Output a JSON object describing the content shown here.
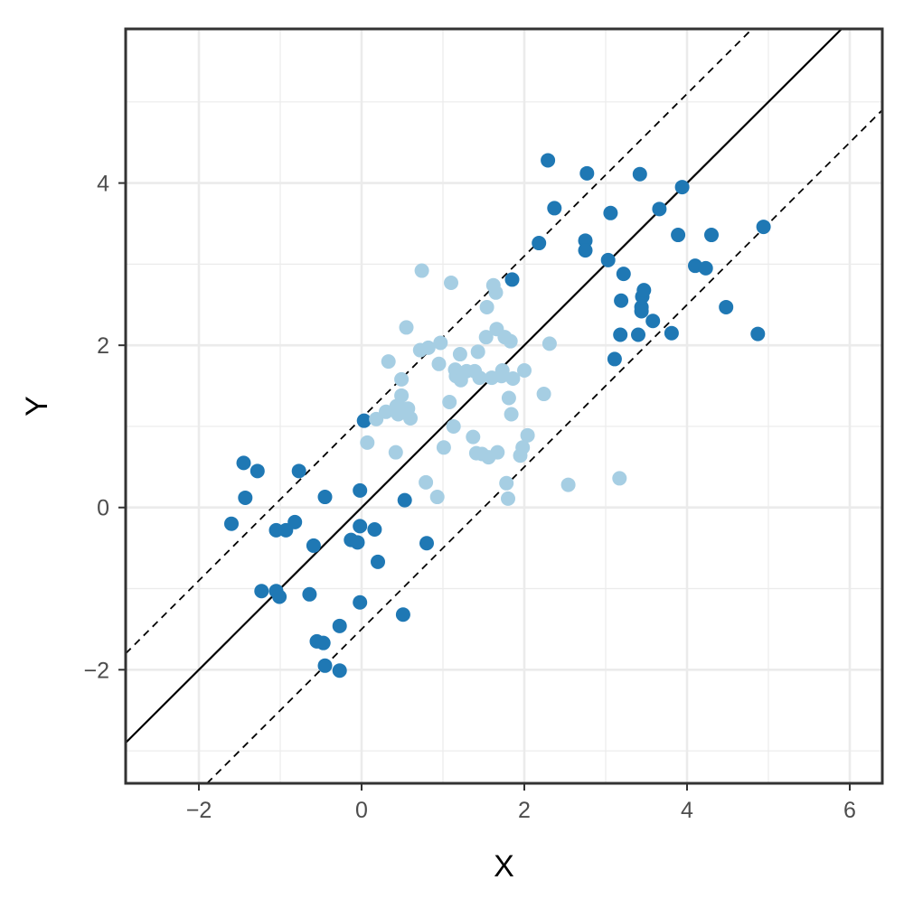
{
  "chart_data": {
    "type": "scatter",
    "title": "",
    "xlabel": "X",
    "ylabel": "Y",
    "xlim": [
      -2.9,
      6.4
    ],
    "ylim": [
      -3.4,
      5.9
    ],
    "grid": true,
    "legend": "none",
    "x_ticks": [
      -2,
      0,
      2,
      4,
      6
    ],
    "y_ticks": [
      -2,
      0,
      2,
      4
    ],
    "x_tick_labels": [
      "−2",
      "0",
      "2",
      "4",
      "6"
    ],
    "y_tick_labels": [
      "−2",
      "0",
      "2",
      "4"
    ],
    "colors": {
      "dark_points": "#1f78b4",
      "light_points": "#a6cee3",
      "line": "#000000",
      "grid": "#ebebeb",
      "panel_border": "#333333"
    },
    "lines": [
      {
        "style": "solid",
        "intercept": 0.0,
        "slope": 1.0
      },
      {
        "style": "dashed",
        "intercept": 1.1,
        "slope": 1.0
      },
      {
        "style": "dashed",
        "intercept": -1.5,
        "slope": 1.0
      }
    ],
    "series": [
      {
        "color_role": "dark",
        "points": [
          [
            -1.6,
            -0.2
          ],
          [
            -1.45,
            0.55
          ],
          [
            -1.43,
            0.12
          ],
          [
            -1.28,
            0.45
          ],
          [
            -1.23,
            -1.03
          ],
          [
            -1.05,
            -0.28
          ],
          [
            -1.05,
            -1.03
          ],
          [
            -1.01,
            -1.1
          ],
          [
            -0.93,
            -0.28
          ],
          [
            -0.82,
            -0.18
          ],
          [
            -0.77,
            0.45
          ],
          [
            -0.64,
            -1.07
          ],
          [
            -0.59,
            -0.47
          ],
          [
            -0.55,
            -1.65
          ],
          [
            -0.47,
            -1.67
          ],
          [
            -0.45,
            0.13
          ],
          [
            -0.45,
            -1.95
          ],
          [
            -0.27,
            -1.46
          ],
          [
            -0.27,
            -2.01
          ],
          [
            -0.13,
            -0.4
          ],
          [
            -0.05,
            -0.43
          ],
          [
            -0.02,
            0.21
          ],
          [
            -0.02,
            -0.23
          ],
          [
            -0.02,
            -1.17
          ],
          [
            0.03,
            1.07
          ],
          [
            0.16,
            -0.27
          ],
          [
            0.2,
            -0.67
          ],
          [
            0.51,
            -1.32
          ],
          [
            0.53,
            0.09
          ],
          [
            0.8,
            -0.44
          ],
          [
            1.85,
            2.81
          ],
          [
            2.18,
            3.26
          ],
          [
            2.29,
            4.28
          ],
          [
            2.37,
            3.69
          ],
          [
            2.75,
            3.29
          ],
          [
            2.75,
            3.17
          ],
          [
            2.77,
            4.12
          ],
          [
            3.03,
            3.05
          ],
          [
            3.06,
            3.63
          ],
          [
            3.11,
            1.83
          ],
          [
            3.18,
            2.13
          ],
          [
            3.19,
            2.55
          ],
          [
            3.22,
            2.88
          ],
          [
            3.4,
            2.13
          ],
          [
            3.42,
            4.11
          ],
          [
            3.44,
            2.47
          ],
          [
            3.44,
            2.42
          ],
          [
            3.45,
            2.6
          ],
          [
            3.47,
            2.68
          ],
          [
            3.58,
            2.3
          ],
          [
            3.66,
            3.68
          ],
          [
            3.81,
            2.15
          ],
          [
            3.89,
            3.36
          ],
          [
            3.94,
            3.95
          ],
          [
            4.1,
            2.98
          ],
          [
            4.23,
            2.95
          ],
          [
            4.3,
            3.36
          ],
          [
            4.48,
            2.47
          ],
          [
            4.87,
            2.14
          ],
          [
            4.94,
            3.46
          ]
        ]
      },
      {
        "color_role": "light",
        "points": [
          [
            0.07,
            0.8
          ],
          [
            0.18,
            1.09
          ],
          [
            0.3,
            1.18
          ],
          [
            0.33,
            1.8
          ],
          [
            0.42,
            0.68
          ],
          [
            0.43,
            1.25
          ],
          [
            0.45,
            1.15
          ],
          [
            0.49,
            1.58
          ],
          [
            0.49,
            1.38
          ],
          [
            0.49,
            1.22
          ],
          [
            0.52,
            1.18
          ],
          [
            0.55,
            2.22
          ],
          [
            0.57,
            1.22
          ],
          [
            0.6,
            1.1
          ],
          [
            0.72,
            1.94
          ],
          [
            0.74,
            2.92
          ],
          [
            0.79,
            0.31
          ],
          [
            0.82,
            1.97
          ],
          [
            0.93,
            0.13
          ],
          [
            0.95,
            1.77
          ],
          [
            0.97,
            2.03
          ],
          [
            1.01,
            0.74
          ],
          [
            1.08,
            1.3
          ],
          [
            1.1,
            2.77
          ],
          [
            1.13,
            1.0
          ],
          [
            1.15,
            1.7
          ],
          [
            1.16,
            1.62
          ],
          [
            1.21,
            1.89
          ],
          [
            1.22,
            1.57
          ],
          [
            1.29,
            1.68
          ],
          [
            1.37,
            0.87
          ],
          [
            1.39,
            1.68
          ],
          [
            1.41,
            0.67
          ],
          [
            1.43,
            1.92
          ],
          [
            1.45,
            1.6
          ],
          [
            1.48,
            0.66
          ],
          [
            1.53,
            2.1
          ],
          [
            1.54,
            2.47
          ],
          [
            1.56,
            0.62
          ],
          [
            1.6,
            1.6
          ],
          [
            1.62,
            2.74
          ],
          [
            1.65,
            2.65
          ],
          [
            1.66,
            2.2
          ],
          [
            1.67,
            0.68
          ],
          [
            1.72,
            1.62
          ],
          [
            1.73,
            1.69
          ],
          [
            1.76,
            2.1
          ],
          [
            1.78,
            0.3
          ],
          [
            1.8,
            0.11
          ],
          [
            1.81,
            1.35
          ],
          [
            1.83,
            2.05
          ],
          [
            1.84,
            1.15
          ],
          [
            1.86,
            1.59
          ],
          [
            1.95,
            0.64
          ],
          [
            1.98,
            0.74
          ],
          [
            2.0,
            1.69
          ],
          [
            2.04,
            0.89
          ],
          [
            2.24,
            1.4
          ],
          [
            2.31,
            2.02
          ],
          [
            2.54,
            0.28
          ],
          [
            3.17,
            0.36
          ]
        ]
      }
    ]
  }
}
